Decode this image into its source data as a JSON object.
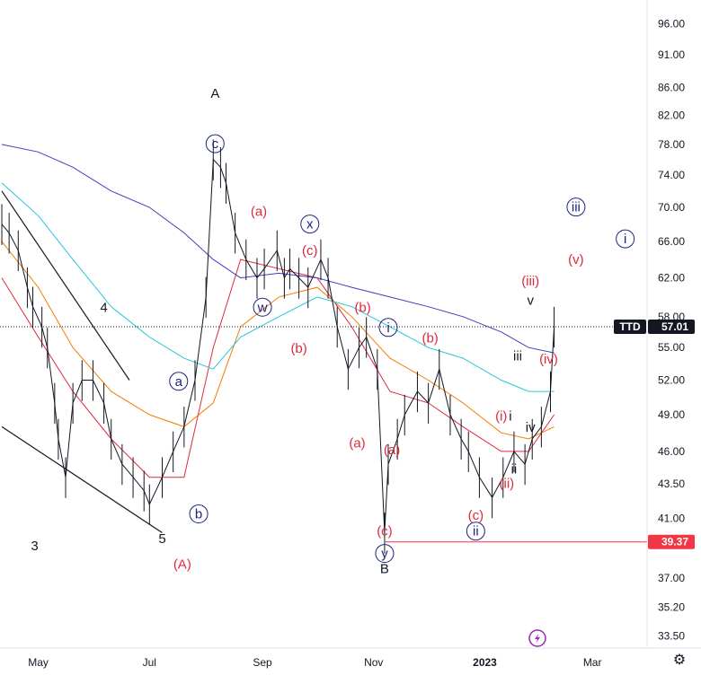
{
  "chart_data": {
    "type": "line",
    "symbol": "TTD",
    "last_price": "57.01",
    "support_price": "39.37",
    "x_ticks": [
      "May",
      "Jul",
      "Sep",
      "Nov",
      "2023",
      "Mar"
    ],
    "y_ticks": [
      "96.00",
      "91.00",
      "86.00",
      "82.00",
      "78.00",
      "74.00",
      "70.00",
      "66.00",
      "62.00",
      "58.00",
      "55.00",
      "52.00",
      "49.00",
      "46.00",
      "43.50",
      "41.00",
      "37.00",
      "35.20",
      "33.50"
    ],
    "scale": "log",
    "ylim": [
      32.8,
      100
    ],
    "xlim": [
      "2022-04-10",
      "2023-03-31"
    ],
    "price_series": {
      "x": [
        "2022-04-11",
        "2022-04-15",
        "2022-04-20",
        "2022-04-25",
        "2022-04-28",
        "2022-05-03",
        "2022-05-06",
        "2022-05-10",
        "2022-05-12",
        "2022-05-16",
        "2022-05-20",
        "2022-05-25",
        "2022-05-31",
        "2022-06-06",
        "2022-06-10",
        "2022-06-16",
        "2022-06-22",
        "2022-06-28",
        "2022-07-01",
        "2022-07-08",
        "2022-07-14",
        "2022-07-20",
        "2022-07-26",
        "2022-08-01",
        "2022-08-05",
        "2022-08-09",
        "2022-08-12",
        "2022-08-17",
        "2022-08-23",
        "2022-08-29",
        "2022-09-02",
        "2022-09-09",
        "2022-09-13",
        "2022-09-16",
        "2022-09-21",
        "2022-09-26",
        "2022-10-03",
        "2022-10-07",
        "2022-10-12",
        "2022-10-18",
        "2022-10-24",
        "2022-10-28",
        "2022-11-03",
        "2022-11-07",
        "2022-11-09",
        "2022-11-14",
        "2022-11-18",
        "2022-11-25",
        "2022-12-01",
        "2022-12-07",
        "2022-12-13",
        "2022-12-19",
        "2022-12-23",
        "2022-12-29",
        "2023-01-05",
        "2023-01-11",
        "2023-01-17",
        "2023-01-23",
        "2023-01-27",
        "2023-02-01",
        "2023-02-06",
        "2023-02-08"
      ],
      "values": [
        68,
        67,
        65,
        61,
        59,
        57,
        55,
        50,
        47,
        44,
        50,
        52,
        52,
        50,
        47,
        45,
        44,
        43,
        42,
        44,
        46,
        48,
        52,
        60,
        76,
        75,
        73,
        67,
        64,
        62,
        63,
        65,
        62,
        63,
        62,
        61,
        64,
        62,
        57,
        53,
        55,
        56,
        53,
        40,
        45,
        47,
        49,
        51,
        50,
        53,
        49,
        47,
        46,
        44,
        42.5,
        44,
        46,
        45,
        47,
        48,
        51,
        57
      ]
    },
    "moving_averages": [
      {
        "color": "#e0283c",
        "x": [
          "2022-04-11",
          "2022-05-01",
          "2022-05-20",
          "2022-06-10",
          "2022-07-01",
          "2022-07-20",
          "2022-08-05",
          "2022-08-20",
          "2022-09-10",
          "2022-10-01",
          "2022-10-20",
          "2022-11-10",
          "2022-12-01",
          "2022-12-20",
          "2023-01-10",
          "2023-01-25",
          "2023-02-08"
        ],
        "values": [
          62,
          56,
          51,
          47,
          44,
          44,
          55,
          64,
          63,
          62,
          57,
          51,
          50,
          48,
          46,
          46,
          49
        ]
      },
      {
        "color": "#f57c00",
        "x": [
          "2022-04-11",
          "2022-05-01",
          "2022-05-20",
          "2022-06-10",
          "2022-07-01",
          "2022-07-20",
          "2022-08-05",
          "2022-08-20",
          "2022-09-10",
          "2022-10-01",
          "2022-10-20",
          "2022-11-10",
          "2022-12-01",
          "2022-12-20",
          "2023-01-10",
          "2023-01-25",
          "2023-02-08"
        ],
        "values": [
          66,
          61,
          55,
          51,
          49,
          48,
          50,
          57,
          60,
          61,
          58,
          54,
          52,
          50,
          47.5,
          47,
          48
        ]
      },
      {
        "color": "#26c6da",
        "x": [
          "2022-04-11",
          "2022-05-01",
          "2022-05-20",
          "2022-06-10",
          "2022-07-01",
          "2022-07-20",
          "2022-08-05",
          "2022-08-20",
          "2022-09-10",
          "2022-10-01",
          "2022-10-20",
          "2022-11-10",
          "2022-12-01",
          "2022-12-20",
          "2023-01-10",
          "2023-01-25",
          "2023-02-08"
        ],
        "values": [
          73,
          69,
          64,
          59,
          56,
          54,
          53,
          56,
          58,
          60,
          59,
          57,
          55,
          54,
          52,
          51,
          51
        ]
      },
      {
        "color": "#3f3fbf",
        "x": [
          "2022-04-11",
          "2022-05-01",
          "2022-05-20",
          "2022-06-10",
          "2022-07-01",
          "2022-07-20",
          "2022-08-05",
          "2022-08-20",
          "2022-09-10",
          "2022-10-01",
          "2022-10-20",
          "2022-11-10",
          "2022-12-01",
          "2022-12-20",
          "2023-01-10",
          "2023-01-25",
          "2023-02-08"
        ],
        "values": [
          78,
          77,
          75,
          72,
          70,
          67,
          64,
          62,
          62.5,
          62,
          61,
          60,
          59,
          58,
          56.5,
          55,
          54.5
        ]
      }
    ],
    "trendlines": [
      {
        "x": [
          "2022-04-11",
          "2022-06-20"
        ],
        "values": [
          72,
          52
        ]
      },
      {
        "x": [
          "2022-04-11",
          "2022-07-08"
        ],
        "values": [
          48,
          40
        ]
      }
    ],
    "wave_labels": [
      {
        "text": "A",
        "color": "black",
        "circle": false,
        "x": "2022-08-06",
        "y": 84.5
      },
      {
        "text": "c",
        "color": "blue",
        "circle": true,
        "x": "2022-08-06",
        "y": 77.5
      },
      {
        "text": "(a)",
        "color": "red",
        "circle": false,
        "x": "2022-08-30",
        "y": 69
      },
      {
        "text": "x",
        "color": "blue",
        "circle": true,
        "x": "2022-09-27",
        "y": 67.5
      },
      {
        "text": "(c)",
        "color": "red",
        "circle": false,
        "x": "2022-09-27",
        "y": 64.5
      },
      {
        "text": "w",
        "color": "blue",
        "circle": true,
        "x": "2022-09-01",
        "y": 58.5
      },
      {
        "text": "(b)",
        "color": "red",
        "circle": false,
        "x": "2022-09-21",
        "y": 54.5
      },
      {
        "text": "4",
        "color": "black",
        "circle": false,
        "x": "2022-06-06",
        "y": 58.5
      },
      {
        "text": "a",
        "color": "blue",
        "circle": true,
        "x": "2022-07-17",
        "y": 51.5
      },
      {
        "text": "b",
        "color": "blue",
        "circle": true,
        "x": "2022-07-28",
        "y": 41
      },
      {
        "text": "3",
        "color": "black",
        "circle": false,
        "x": "2022-04-29",
        "y": 38.8
      },
      {
        "text": "5",
        "color": "black",
        "circle": false,
        "x": "2022-07-08",
        "y": 39.3
      },
      {
        "text": "(A)",
        "color": "red",
        "circle": false,
        "x": "2022-07-19",
        "y": 37.6
      },
      {
        "text": "(b)",
        "color": "red",
        "circle": false,
        "x": "2022-10-26",
        "y": 58.5
      },
      {
        "text": "i",
        "color": "blue",
        "circle": true,
        "x": "2022-11-09",
        "y": 56.5
      },
      {
        "text": "(a)",
        "color": "red",
        "circle": false,
        "x": "2022-10-23",
        "y": 46.3
      },
      {
        "text": "(a)",
        "color": "red",
        "circle": false,
        "x": "2022-11-11",
        "y": 45.8
      },
      {
        "text": "(b)",
        "color": "red",
        "circle": false,
        "x": "2022-12-02",
        "y": 55.5
      },
      {
        "text": "(c)",
        "color": "red",
        "circle": false,
        "x": "2022-11-07",
        "y": 39.8
      },
      {
        "text": "y",
        "color": "blue",
        "circle": true,
        "x": "2022-11-07",
        "y": 38.3
      },
      {
        "text": "B",
        "color": "black",
        "circle": false,
        "x": "2022-11-07",
        "y": 37.3
      },
      {
        "text": "(c)",
        "color": "red",
        "circle": false,
        "x": "2022-12-27",
        "y": 40.9
      },
      {
        "text": "ii",
        "color": "blue",
        "circle": true,
        "x": "2022-12-27",
        "y": 39.8
      },
      {
        "text": "(i)",
        "color": "red",
        "circle": false,
        "x": "2023-01-10",
        "y": 48.5
      },
      {
        "text": "i",
        "color": "black",
        "circle": false,
        "x": "2023-01-15",
        "y": 48.5
      },
      {
        "text": "(ii)",
        "color": "red",
        "circle": false,
        "x": "2023-01-13",
        "y": 43.2
      },
      {
        "text": "ii",
        "color": "black",
        "circle": false,
        "x": "2023-01-17",
        "y": 44.3
      },
      {
        "text": "iii",
        "color": "black",
        "circle": false,
        "x": "2023-01-19",
        "y": 53.8
      },
      {
        "text": "iv",
        "color": "black",
        "circle": false,
        "x": "2023-01-26",
        "y": 47.6
      },
      {
        "text": "(iii)",
        "color": "red",
        "circle": false,
        "x": "2023-01-26",
        "y": 61.2
      },
      {
        "text": "v",
        "color": "black",
        "circle": false,
        "x": "2023-01-26",
        "y": 59.2
      },
      {
        "text": "(iv)",
        "color": "red",
        "circle": false,
        "x": "2023-02-05",
        "y": 53.5
      },
      {
        "text": "(v)",
        "color": "red",
        "circle": false,
        "x": "2023-02-20",
        "y": 63.5
      },
      {
        "text": "iii",
        "color": "blue",
        "circle": true,
        "x": "2023-02-20",
        "y": 69.5
      },
      {
        "text": "i",
        "color": "blue",
        "circle": true,
        "x": "2023-03-19",
        "y": 65.8
      }
    ],
    "title": "",
    "xlabel": "",
    "ylabel": "",
    "grid": false,
    "legend": "none"
  },
  "colors": {
    "price_bars": "#131722",
    "support_line": "#f23645",
    "last_price_line": "#131722",
    "last_price_badge": "#131722",
    "support_badge": "#f23645",
    "tradingview_logo": "#9c27b0"
  },
  "icons": {
    "settings": "gear-icon",
    "logo": "lightning-bolt-icon"
  }
}
